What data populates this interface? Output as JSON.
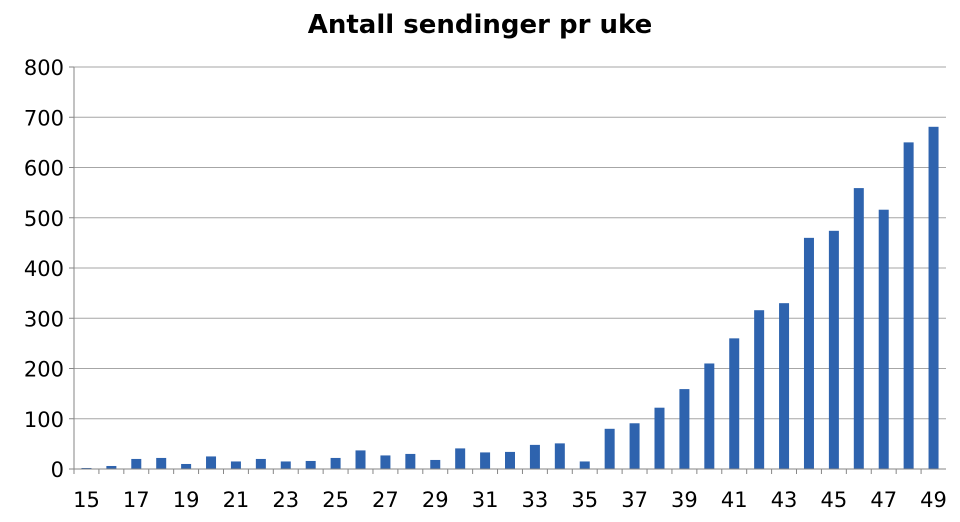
{
  "chart_data": {
    "type": "bar",
    "title": "Antall sendinger pr uke",
    "xlabel": "",
    "ylabel": "",
    "ylim": [
      0,
      800
    ],
    "yticks": [
      0,
      100,
      200,
      300,
      400,
      500,
      600,
      700,
      800
    ],
    "xtick_labels": [
      "15",
      "17",
      "19",
      "21",
      "23",
      "25",
      "27",
      "29",
      "31",
      "33",
      "35",
      "37",
      "39",
      "41",
      "43",
      "45",
      "47",
      "49"
    ],
    "categories": [
      "15",
      "16",
      "17",
      "18",
      "19",
      "20",
      "21",
      "22",
      "23",
      "24",
      "25",
      "26",
      "27",
      "28",
      "29",
      "30",
      "31",
      "32",
      "33",
      "34",
      "35",
      "36",
      "37",
      "38",
      "39",
      "40",
      "41",
      "42",
      "43",
      "44",
      "45",
      "46",
      "47",
      "48",
      "49"
    ],
    "values": [
      2,
      6,
      20,
      22,
      10,
      25,
      15,
      20,
      15,
      16,
      22,
      37,
      27,
      30,
      18,
      41,
      33,
      34,
      48,
      51,
      15,
      80,
      91,
      122,
      159,
      210,
      260,
      316,
      330,
      460,
      474,
      559,
      516,
      650,
      681
    ],
    "grid": true,
    "legend": "none",
    "bar_color": "#2E63AE"
  }
}
